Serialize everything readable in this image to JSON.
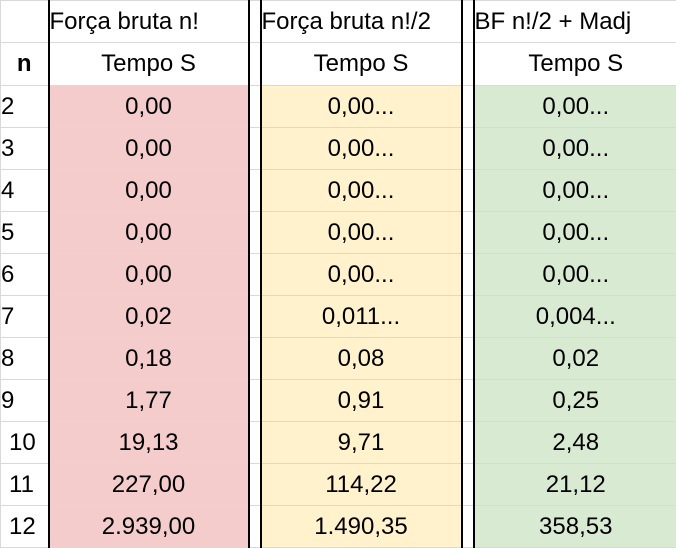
{
  "columns": {
    "n_label": "n",
    "force_brute": {
      "title": "Força bruta n!",
      "subtitle": "Tempo S"
    },
    "force_brute_half": {
      "title": "Força bruta n!/2",
      "subtitle": "Tempo S"
    },
    "bf_half_madj": {
      "title": "BF n!/2 + Madj",
      "subtitle": "Tempo S"
    }
  },
  "colors": {
    "force_brute": "#f4cccc",
    "force_brute_half": "#fff2cc",
    "bf_half_madj": "#d9ead3",
    "gridline": "#d9d9d9",
    "group_border": "#000000"
  },
  "rows": [
    {
      "n": "2",
      "bf": "0,00",
      "bf_half": "0,00...",
      "madj": "0,00..."
    },
    {
      "n": "3",
      "bf": "0,00",
      "bf_half": "0,00...",
      "madj": "0,00..."
    },
    {
      "n": "4",
      "bf": "0,00",
      "bf_half": "0,00...",
      "madj": "0,00..."
    },
    {
      "n": "5",
      "bf": "0,00",
      "bf_half": "0,00...",
      "madj": "0,00..."
    },
    {
      "n": "6",
      "bf": "0,00",
      "bf_half": "0,00...",
      "madj": "0,00..."
    },
    {
      "n": "7",
      "bf": "0,02",
      "bf_half": "0,011...",
      "madj": "0,004..."
    },
    {
      "n": "8",
      "bf": "0,18",
      "bf_half": "0,08",
      "madj": "0,02"
    },
    {
      "n": "9",
      "bf": "1,77",
      "bf_half": "0,91",
      "madj": "0,25"
    },
    {
      "n": "10",
      "bf": "19,13",
      "bf_half": "9,71",
      "madj": "2,48"
    },
    {
      "n": "11",
      "bf": "227,00",
      "bf_half": "114,22",
      "madj": "21,12"
    },
    {
      "n": "12",
      "bf": "2.939,00",
      "bf_half": "1.490,35",
      "madj": "358,53"
    }
  ]
}
